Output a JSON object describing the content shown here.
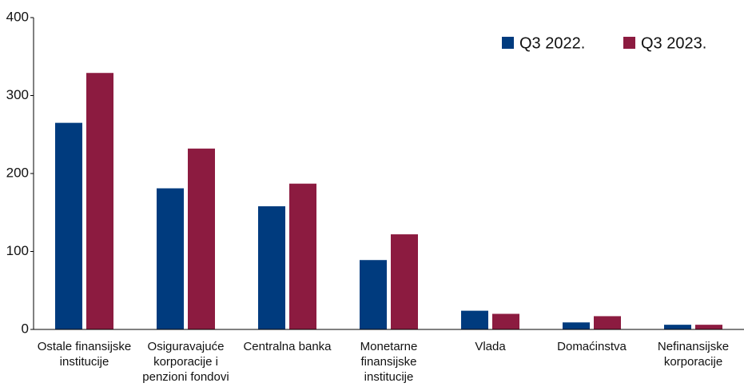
{
  "chart_data": {
    "type": "bar",
    "categories": [
      "Ostale finansijske institucije",
      "Osiguravajuće korporacije i penzioni fondovi",
      "Centralna banka",
      "Monetarne finansijske institucije",
      "Vlada",
      "Domaćinstva",
      "Nefinansijske korporacije"
    ],
    "series": [
      {
        "name": "Q3 2022.",
        "color": "#003b7e",
        "values": [
          265,
          181,
          158,
          89,
          24,
          9,
          6
        ]
      },
      {
        "name": "Q3 2023.",
        "color": "#8c1b40",
        "values": [
          329,
          232,
          187,
          122,
          20,
          17,
          6
        ]
      }
    ],
    "ylim": [
      0,
      400
    ],
    "yticks": [
      0,
      100,
      200,
      300,
      400
    ],
    "grid": false,
    "legend": "top-right"
  }
}
